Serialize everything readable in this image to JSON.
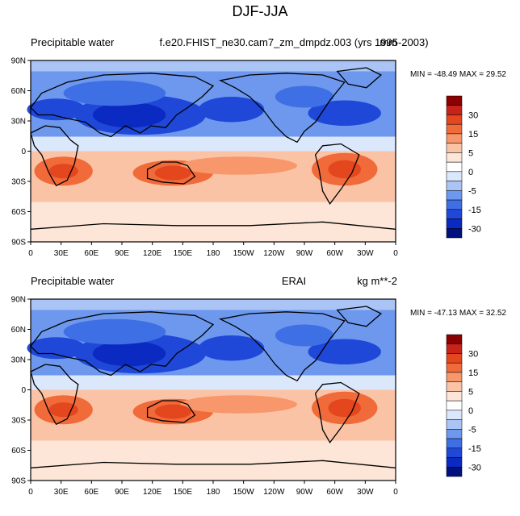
{
  "title": "DJF-JJA",
  "panels": [
    {
      "id": "model",
      "left_label": "Precipitable water",
      "center_label": "f.e20.FHIST_ne30.cam7_zm_dmpdz.003 (yrs 1995-2003)",
      "right_label": "mm",
      "min": "-48.49",
      "max": "29.52",
      "stats": "MIN = -48.49 MAX =  29.52"
    },
    {
      "id": "obs",
      "left_label": "Precipitable water",
      "center_label": "ERAI",
      "right_label": "kg m**-2",
      "min": "-47.13",
      "max": "32.52",
      "stats": "MIN = -47.13 MAX =  32.52"
    }
  ],
  "lat_ticks": [
    "90N",
    "60N",
    "30N",
    "0",
    "30S",
    "60S",
    "90S"
  ],
  "lon_ticks": [
    "0",
    "30E",
    "60E",
    "90E",
    "120E",
    "150E",
    "180",
    "150W",
    "120W",
    "90W",
    "60W",
    "30W",
    "0"
  ],
  "colorbar": {
    "labels": [
      "30",
      "15",
      "5",
      "0",
      "-5",
      "-15",
      "-30"
    ],
    "colors": [
      "#8b0000",
      "#c8231b",
      "#e4461e",
      "#f06a3a",
      "#f7976b",
      "#fbc3a5",
      "#fde6d8",
      "#ffffff",
      "#dbe7fb",
      "#a9c4f5",
      "#6d98ee",
      "#3f6fe4",
      "#1f48d8",
      "#0a2ac2",
      "#00107e"
    ]
  }
}
